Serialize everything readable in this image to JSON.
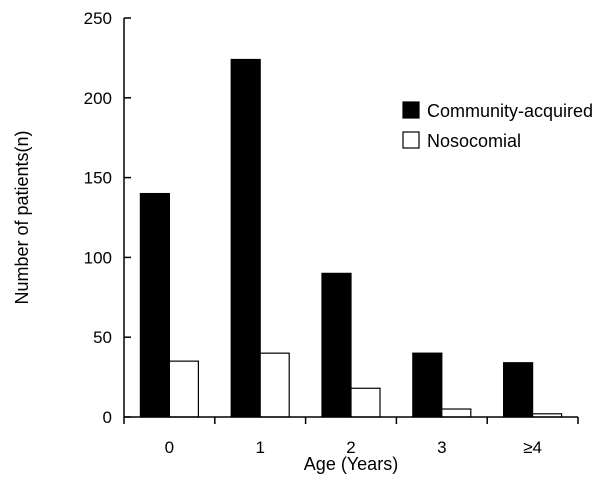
{
  "chart_data": {
    "type": "bar",
    "categories": [
      "0",
      "1",
      "2",
      "3",
      "≥4"
    ],
    "series": [
      {
        "name": "Community-acquired",
        "values": [
          140,
          224,
          90,
          40,
          34
        ],
        "fill": "#000000"
      },
      {
        "name": "Nosocomial",
        "values": [
          35,
          40,
          18,
          5,
          2
        ],
        "fill": "#ffffff"
      }
    ],
    "xlabel": "Age (Years)",
    "ylabel": "Number of patients(n)",
    "ylim": [
      0,
      250
    ],
    "yticks": [
      0,
      50,
      100,
      150,
      200,
      250
    ],
    "grid": false,
    "legend_position": "top-right"
  }
}
